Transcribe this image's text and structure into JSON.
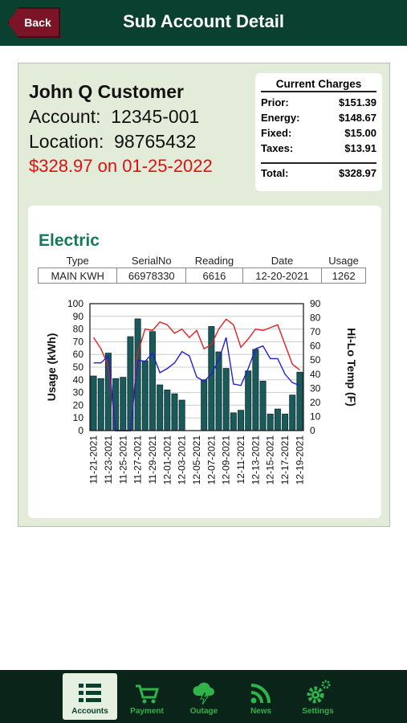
{
  "header": {
    "back_label": "Back",
    "title": "Sub Account Detail"
  },
  "customer": {
    "name": "John Q Customer",
    "account_label": "Account:",
    "account": "12345-001",
    "location_label": "Location:",
    "location": "98765432",
    "amount_due": "$328.97 on 01-25-2022"
  },
  "charges": {
    "title": "Current Charges",
    "rows": [
      {
        "label": "Prior:",
        "value": "$151.39"
      },
      {
        "label": "Energy:",
        "value": "$148.67"
      },
      {
        "label": "Fixed:",
        "value": "$15.00"
      },
      {
        "label": "Taxes:",
        "value": "$13.91"
      }
    ],
    "total_label": "Total:",
    "total_value": "$328.97"
  },
  "electric": {
    "title": "Electric",
    "columns": [
      "Type",
      "SerialNo",
      "Reading",
      "Date",
      "Usage"
    ],
    "row": [
      "MAIN KWH",
      "66978330",
      "6616",
      "12-20-2021",
      "1262"
    ]
  },
  "chart_data": {
    "type": "bar",
    "ylabel": "Usage (kWh)",
    "y2label": "Hi-Lo Temp (F)",
    "ylim": [
      0,
      100
    ],
    "y2lim": [
      0,
      90
    ],
    "yticks": [
      0,
      10,
      20,
      30,
      40,
      50,
      60,
      70,
      80,
      90,
      100
    ],
    "y2ticks": [
      0,
      10,
      20,
      30,
      40,
      50,
      60,
      70,
      80,
      90
    ],
    "x_labels": [
      "11-21-2021",
      "11-23-2021",
      "11-25-2021",
      "11-27-2021",
      "11-29-2021",
      "12-01-2021",
      "12-03-2021",
      "12-05-2021",
      "12-07-2021",
      "12-09-2021",
      "12-11-2021",
      "12-13-2021",
      "12-15-2021",
      "12-17-2021",
      "12-19-2021"
    ],
    "usage": [
      43,
      41,
      61,
      41,
      42,
      74,
      88,
      55,
      78,
      36,
      32,
      29,
      24,
      0,
      0,
      40,
      82,
      62,
      49,
      14,
      16,
      47,
      64,
      39,
      13,
      17,
      13,
      28,
      46
    ],
    "hi_temp": [
      66,
      58,
      46,
      0,
      0,
      0,
      55,
      72,
      71,
      77,
      75,
      69,
      72,
      66,
      71,
      58,
      61,
      72,
      79,
      75,
      59,
      65,
      72,
      71,
      73,
      75,
      61,
      47,
      43
    ],
    "lo_temp": [
      48,
      48,
      53,
      0,
      0,
      0,
      50,
      49,
      55,
      41,
      44,
      48,
      56,
      53,
      38,
      35,
      40,
      50,
      66,
      33,
      32,
      44,
      58,
      60,
      51,
      51,
      40,
      34,
      32
    ],
    "colors": {
      "bar": "#1a5a5a",
      "hi": "#e02020",
      "lo": "#2020d0"
    }
  },
  "nav": [
    {
      "label": "Accounts",
      "icon": "list-icon",
      "active": true
    },
    {
      "label": "Payment",
      "icon": "cart-icon",
      "active": false
    },
    {
      "label": "Outage",
      "icon": "storm-icon",
      "active": false
    },
    {
      "label": "News",
      "icon": "rss-icon",
      "active": false
    },
    {
      "label": "Settings",
      "icon": "gear-icon",
      "active": false
    }
  ]
}
